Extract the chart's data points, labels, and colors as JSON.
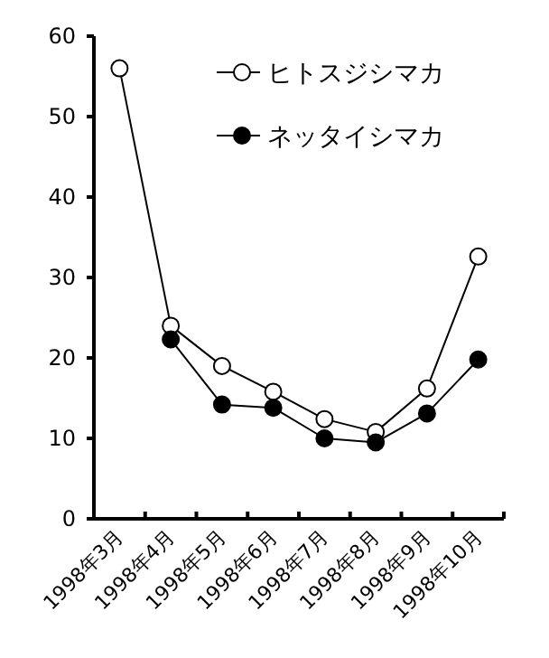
{
  "chart_data": {
    "type": "line",
    "categories": [
      "1998年3月",
      "1998年4月",
      "1998年5月",
      "1998年6月",
      "1998年7月",
      "1998年8月",
      "1998年9月",
      "1998年10月"
    ],
    "series": [
      {
        "name": "ヒトスジシマカ",
        "color": "#000000",
        "values": [
          56,
          24,
          19,
          15.8,
          12.4,
          10.8,
          16.2,
          32.6
        ]
      },
      {
        "name": "ネッタイシマカ",
        "color": "#000000",
        "values": [
          null,
          22.3,
          14.2,
          13.8,
          10,
          9.5,
          13.1,
          19.8
        ]
      }
    ],
    "ylim": [
      0,
      60
    ],
    "yticks": [
      0,
      10,
      20,
      30,
      40,
      50,
      60
    ],
    "grid": false,
    "legend": "top right",
    "marker": "circle",
    "line_style": "solid"
  }
}
